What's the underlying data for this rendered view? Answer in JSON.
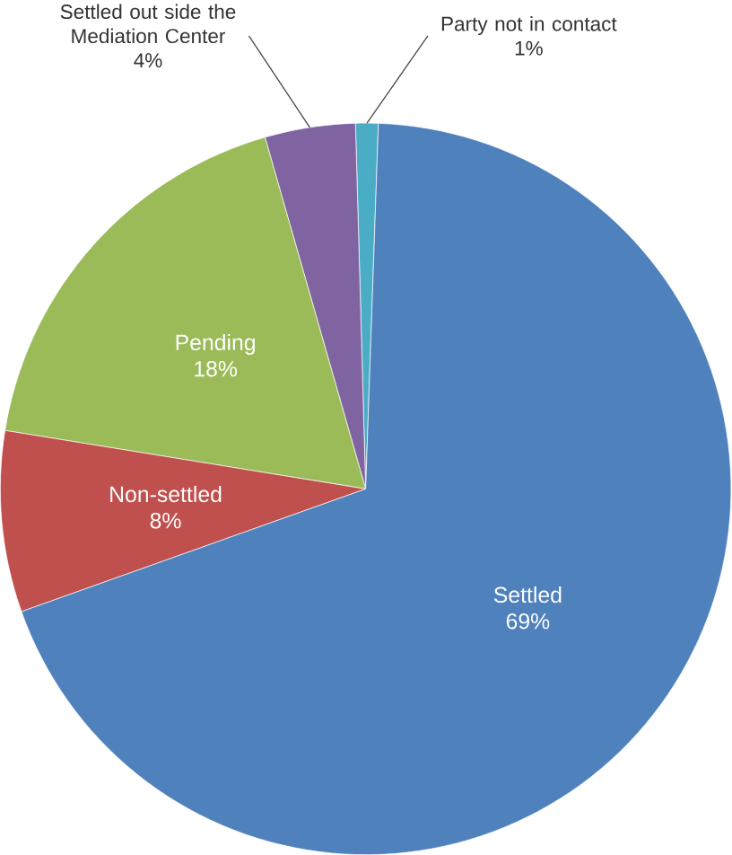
{
  "chart_data": {
    "type": "pie",
    "categories": [
      "Party not in contact",
      "Settled out side the Mediation Center",
      "Pending",
      "Non-settled",
      "Settled"
    ],
    "values": [
      1,
      4,
      18,
      8,
      69
    ],
    "colors": [
      "#4bacc6",
      "#8064a2",
      "#9bbb59",
      "#c0504d",
      "#4f81bd"
    ],
    "value_labels": [
      "1%",
      "4%",
      "18%",
      "8%",
      "69%"
    ]
  }
}
